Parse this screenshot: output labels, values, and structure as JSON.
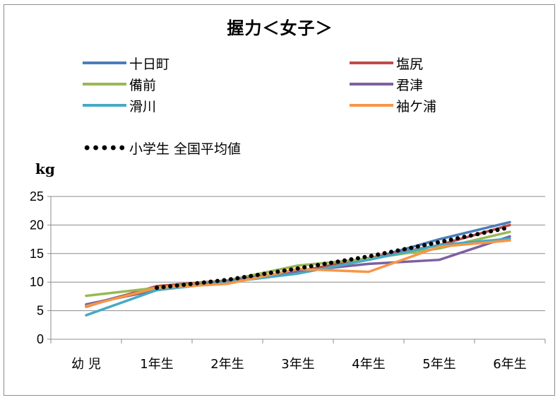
{
  "chart_data": {
    "type": "line",
    "title": "握力＜女子＞",
    "ylabel": "kg",
    "xlabel": "",
    "categories": [
      "幼 児",
      "1年生",
      "2年生",
      "3年生",
      "4年生",
      "5年生",
      "6年生"
    ],
    "ylim": [
      0,
      25
    ],
    "yticks": [
      0,
      5,
      10,
      15,
      20,
      25
    ],
    "grid": true,
    "legend_position": "top",
    "series": [
      {
        "name": "十日町",
        "color": "#4a7ebb",
        "style": "solid",
        "values": [
          5.9,
          9.2,
          10.2,
          11.8,
          14.0,
          17.5,
          20.5
        ]
      },
      {
        "name": "塩尻",
        "color": "#be4b48",
        "style": "solid",
        "values": [
          5.7,
          9.3,
          10.3,
          11.9,
          14.2,
          16.5,
          20.0
        ]
      },
      {
        "name": "備前",
        "color": "#98b954",
        "style": "solid",
        "values": [
          7.6,
          9.0,
          10.3,
          12.9,
          14.1,
          15.9,
          18.8
        ]
      },
      {
        "name": "君津",
        "color": "#7d60a0",
        "style": "solid",
        "values": [
          6.1,
          8.6,
          10.2,
          11.9,
          13.2,
          13.9,
          18.0
        ]
      },
      {
        "name": "滑川",
        "color": "#46aac5",
        "style": "solid",
        "values": [
          4.2,
          8.6,
          10.0,
          11.5,
          13.9,
          16.5,
          17.6
        ]
      },
      {
        "name": "袖ケ浦",
        "color": "#f79646",
        "style": "solid",
        "values": [
          5.8,
          9.0,
          9.7,
          12.3,
          11.8,
          16.2,
          17.3
        ]
      },
      {
        "name": "小学生 全国平均値",
        "color": "#000000",
        "style": "dotted",
        "values": [
          null,
          9.0,
          10.4,
          12.4,
          14.5,
          17.0,
          19.6
        ]
      }
    ]
  }
}
